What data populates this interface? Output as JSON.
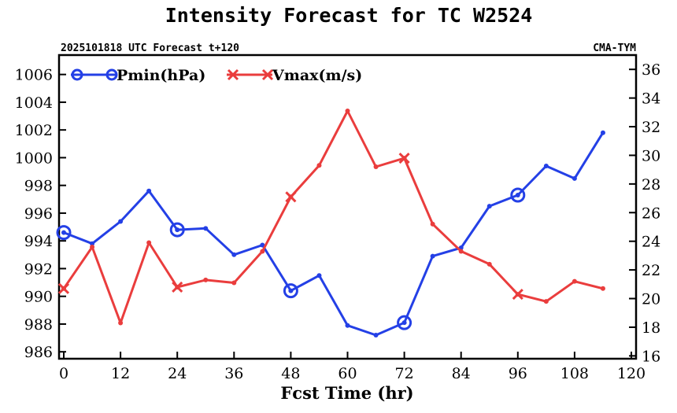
{
  "chart_data": {
    "type": "line",
    "title": "Intensity Forecast for TC W2524",
    "subtitle_left": "2025101818 UTC Forecast t+120",
    "subtitle_right": "CMA-TYM",
    "xlabel": "Fcst Time (hr)",
    "xlim": [
      -1,
      121
    ],
    "xticks": [
      "0",
      "12",
      "24",
      "36",
      "48",
      "60",
      "72",
      "84",
      "96",
      "108",
      "120"
    ],
    "ylim_left": [
      985.5,
      1007.4
    ],
    "yticks_left": [
      "986",
      "988",
      "990",
      "992",
      "994",
      "996",
      "998",
      "1000",
      "1002",
      "1004",
      "1006"
    ],
    "ylim_right": [
      15.8,
      37.0
    ],
    "yticks_right": [
      "16",
      "18",
      "20",
      "22",
      "24",
      "26",
      "28",
      "30",
      "32",
      "34",
      "36"
    ],
    "x": [
      0,
      6,
      12,
      18,
      24,
      30,
      36,
      42,
      48,
      54,
      60,
      66,
      72,
      78,
      84,
      90,
      96,
      102,
      108,
      114
    ],
    "series": [
      {
        "name": "Pmin(hPa)",
        "axis": "left",
        "color": "#2440e6",
        "marker": "circle",
        "values": [
          994.6,
          993.8,
          995.4,
          997.6,
          994.8,
          994.9,
          993.0,
          993.7,
          990.4,
          991.5,
          987.9,
          987.2,
          988.1,
          992.9,
          993.5,
          996.5,
          997.3,
          999.4,
          998.5,
          1001.8
        ]
      },
      {
        "name": "Vmax(m/s)",
        "axis": "right",
        "color": "#ea3d3d",
        "marker": "x",
        "values": [
          20.7,
          23.6,
          18.3,
          23.9,
          20.8,
          21.3,
          21.1,
          23.3,
          27.1,
          29.3,
          33.1,
          29.2,
          29.8,
          25.2,
          23.3,
          22.4,
          20.3,
          19.8,
          21.2,
          20.7
        ]
      }
    ],
    "legend_position": "top-left"
  }
}
